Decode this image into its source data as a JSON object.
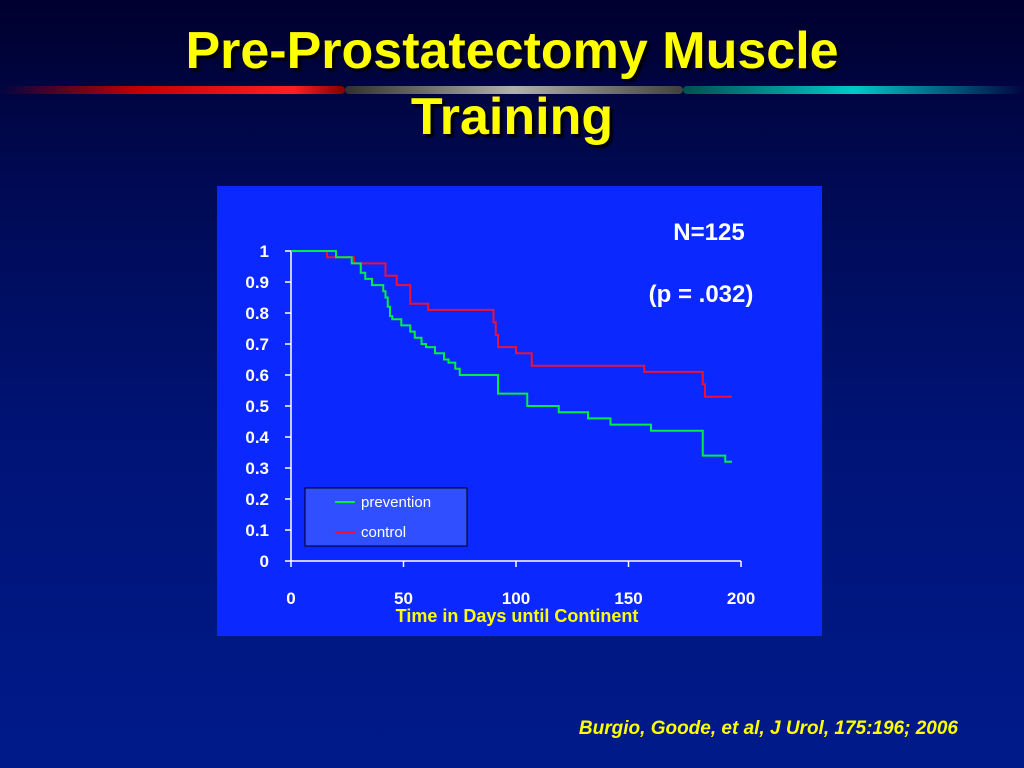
{
  "slide": {
    "title_line1": "Pre-Prostatectomy Muscle",
    "title_line2": "Training",
    "citation": "Burgio, Goode, et al, J Urol, 175:196; 2006",
    "annotation_n": "N=125",
    "annotation_p": "(p = .032)"
  },
  "colors": {
    "title": "#ffff00",
    "plot_background": "#0a28ff",
    "legend_background": "#3050ff",
    "prevention": "#00ee44",
    "control": "#ee1133"
  },
  "chart_data": {
    "type": "line",
    "title": "",
    "xlabel": "Time in Days until Continent",
    "ylabel": "",
    "xlim": [
      0,
      200
    ],
    "ylim": [
      0,
      1
    ],
    "xticks": [
      0,
      50,
      100,
      150,
      200
    ],
    "yticks": [
      0,
      0.1,
      0.2,
      0.3,
      0.4,
      0.5,
      0.6,
      0.7,
      0.8,
      0.9,
      1
    ],
    "ytick_labels": [
      "0",
      "0.1",
      "0.2",
      "0.3",
      "0.4",
      "0.5",
      "0.6",
      "0.7",
      "0.8",
      "0.9",
      "1"
    ],
    "xtick_labels": [
      "0",
      "50",
      "100",
      "150",
      "200"
    ],
    "grid": false,
    "legend_position": "bottom-left",
    "step": true,
    "series": [
      {
        "name": "prevention",
        "color": "#00ee44",
        "points": [
          [
            0,
            1
          ],
          [
            18,
            1
          ],
          [
            20,
            0.98
          ],
          [
            25,
            0.98
          ],
          [
            27,
            0.96
          ],
          [
            30,
            0.96
          ],
          [
            31,
            0.93
          ],
          [
            33,
            0.91
          ],
          [
            35,
            0.91
          ],
          [
            36,
            0.89
          ],
          [
            40,
            0.89
          ],
          [
            41,
            0.87
          ],
          [
            42,
            0.85
          ],
          [
            43,
            0.82
          ],
          [
            44,
            0.79
          ],
          [
            45,
            0.78
          ],
          [
            48,
            0.78
          ],
          [
            49,
            0.76
          ],
          [
            52,
            0.76
          ],
          [
            53,
            0.74
          ],
          [
            55,
            0.72
          ],
          [
            57,
            0.72
          ],
          [
            58,
            0.7
          ],
          [
            60,
            0.69
          ],
          [
            64,
            0.67
          ],
          [
            68,
            0.65
          ],
          [
            70,
            0.64
          ],
          [
            73,
            0.62
          ],
          [
            75,
            0.6
          ],
          [
            80,
            0.6
          ],
          [
            91,
            0.6
          ],
          [
            92,
            0.54
          ],
          [
            104,
            0.54
          ],
          [
            105,
            0.5
          ],
          [
            118,
            0.5
          ],
          [
            119,
            0.48
          ],
          [
            131,
            0.48
          ],
          [
            132,
            0.46
          ],
          [
            141,
            0.46
          ],
          [
            142,
            0.44
          ],
          [
            159,
            0.44
          ],
          [
            160,
            0.42
          ],
          [
            182,
            0.42
          ],
          [
            183,
            0.34
          ],
          [
            192,
            0.34
          ],
          [
            193,
            0.32
          ],
          [
            196,
            0.32
          ]
        ]
      },
      {
        "name": "control",
        "color": "#ee1133",
        "points": [
          [
            0,
            1
          ],
          [
            15,
            1
          ],
          [
            16,
            0.98
          ],
          [
            27,
            0.98
          ],
          [
            28,
            0.96
          ],
          [
            41,
            0.96
          ],
          [
            42,
            0.92
          ],
          [
            46,
            0.92
          ],
          [
            47,
            0.89
          ],
          [
            52,
            0.89
          ],
          [
            53,
            0.83
          ],
          [
            60,
            0.83
          ],
          [
            61,
            0.81
          ],
          [
            89,
            0.81
          ],
          [
            90,
            0.77
          ],
          [
            91,
            0.73
          ],
          [
            92,
            0.69
          ],
          [
            99,
            0.69
          ],
          [
            100,
            0.67
          ],
          [
            106,
            0.67
          ],
          [
            107,
            0.63
          ],
          [
            156,
            0.63
          ],
          [
            157,
            0.61
          ],
          [
            182,
            0.61
          ],
          [
            183,
            0.57
          ],
          [
            184,
            0.53
          ],
          [
            196,
            0.53
          ]
        ]
      }
    ]
  }
}
